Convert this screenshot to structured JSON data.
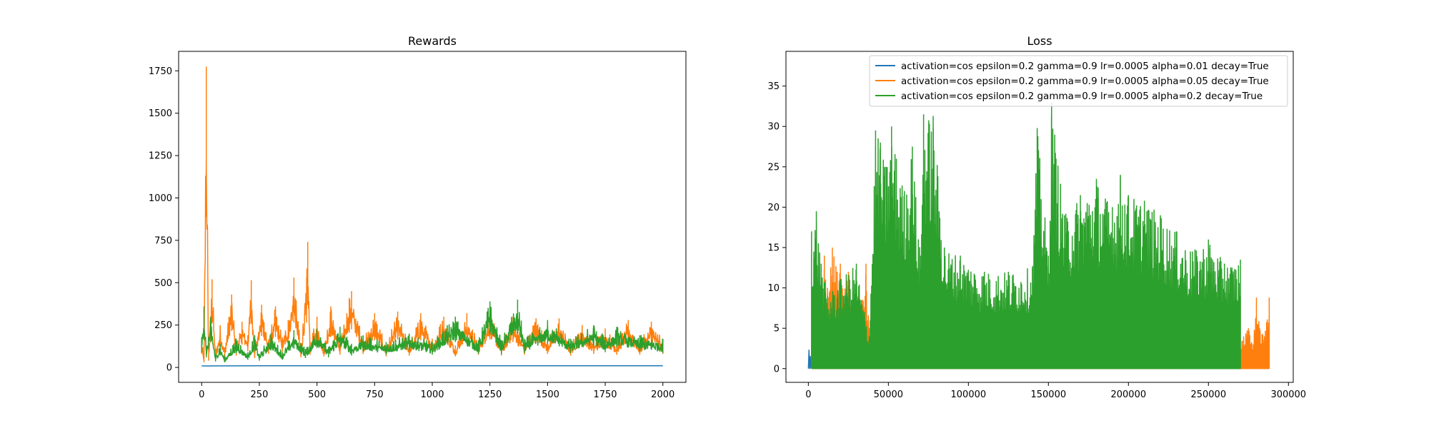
{
  "chart_data": [
    {
      "type": "line",
      "title": "Rewards",
      "xlabel": "",
      "ylabel": "",
      "xlim": [
        -100,
        2100
      ],
      "ylim": [
        -88,
        1865
      ],
      "xticks": [
        0,
        250,
        500,
        750,
        1000,
        1250,
        1500,
        1750,
        2000
      ],
      "xtick_labels": [
        "0",
        "250",
        "500",
        "750",
        "1000",
        "1250",
        "1500",
        "1750",
        "2000"
      ],
      "yticks": [
        0,
        250,
        500,
        750,
        1000,
        1250,
        1500,
        1750
      ],
      "ytick_labels": [
        "0",
        "250",
        "500",
        "750",
        "1000",
        "1250",
        "1500",
        "1750"
      ],
      "grid": false,
      "legend": null,
      "series": [
        {
          "color": "#1f77b4",
          "x": [
            0,
            250,
            500,
            750,
            1000,
            1250,
            1500,
            1750,
            2000
          ],
          "y": [
            9,
            10,
            10,
            10,
            10,
            10,
            10,
            10,
            10
          ]
        },
        {
          "color": "#ff7f0e",
          "x": [
            0,
            10,
            20,
            30,
            45,
            60,
            80,
            100,
            130,
            150,
            175,
            200,
            215,
            230,
            260,
            290,
            320,
            350,
            375,
            400,
            430,
            455,
            460,
            470,
            500,
            530,
            560,
            600,
            640,
            650,
            700,
            750,
            800,
            850,
            900,
            950,
            1000,
            1050,
            1100,
            1150,
            1200,
            1250,
            1300,
            1350,
            1400,
            1450,
            1500,
            1550,
            1600,
            1650,
            1700,
            1750,
            1800,
            1850,
            1900,
            1950,
            2000
          ],
          "y": [
            160,
            60,
            1775,
            80,
            520,
            90,
            250,
            120,
            430,
            140,
            270,
            190,
            515,
            110,
            370,
            160,
            360,
            180,
            280,
            530,
            120,
            530,
            740,
            150,
            300,
            130,
            360,
            150,
            410,
            450,
            160,
            320,
            130,
            330,
            140,
            320,
            170,
            300,
            130,
            320,
            150,
            330,
            140,
            300,
            150,
            290,
            160,
            290,
            140,
            250,
            160,
            230,
            150,
            280,
            150,
            270,
            160
          ]
        },
        {
          "color": "#2ca02c",
          "x": [
            0,
            10,
            20,
            40,
            60,
            80,
            100,
            150,
            200,
            230,
            250,
            300,
            350,
            400,
            450,
            500,
            550,
            600,
            650,
            700,
            800,
            900,
            1000,
            1100,
            1200,
            1250,
            1300,
            1370,
            1400,
            1500,
            1600,
            1700,
            1750,
            1800,
            1900,
            2000
          ],
          "y": [
            180,
            360,
            120,
            300,
            70,
            140,
            60,
            170,
            90,
            190,
            80,
            200,
            90,
            220,
            110,
            230,
            120,
            240,
            140,
            190,
            150,
            200,
            150,
            300,
            160,
            390,
            160,
            400,
            170,
            280,
            170,
            250,
            180,
            240,
            190,
            170
          ]
        }
      ]
    },
    {
      "type": "line",
      "title": "Loss",
      "xlabel": "",
      "ylabel": "",
      "xlim": [
        -14000,
        303000
      ],
      "ylim": [
        -1.7,
        39.3
      ],
      "xticks": [
        0,
        50000,
        100000,
        150000,
        200000,
        250000,
        300000
      ],
      "xtick_labels": [
        "0",
        "50000",
        "100000",
        "150000",
        "200000",
        "250000",
        "300000"
      ],
      "yticks": [
        0,
        5,
        10,
        15,
        20,
        25,
        30,
        35
      ],
      "ytick_labels": [
        "0",
        "5",
        "10",
        "15",
        "20",
        "25",
        "30",
        "35"
      ],
      "grid": false,
      "legend": "top-right",
      "series": [
        {
          "name": "activation=cos epsilon=0.2 gamma=0.9 lr=0.0005 alpha=0.01 decay=True",
          "color": "#1f77b4",
          "x": [
            0,
            400,
            800,
            1200,
            1600
          ],
          "y": [
            0,
            2.3,
            0,
            1.5,
            0
          ]
        },
        {
          "name": "activation=cos epsilon=0.2 gamma=0.9 lr=0.0005 alpha=0.05 decay=True",
          "color": "#ff7f0e",
          "x": [
            2000,
            5000,
            8000,
            10000,
            12000,
            15000,
            18000,
            20000,
            22000,
            25000,
            28000,
            30000,
            33000,
            36000,
            38000,
            272000,
            275000,
            278000,
            280000,
            282000,
            285000,
            288000
          ],
          "y": [
            3,
            13,
            11,
            14,
            10,
            15,
            12,
            13,
            9,
            12,
            8,
            11,
            8,
            13,
            5,
            4,
            5,
            3,
            8.8,
            5,
            4,
            8.8
          ]
        },
        {
          "name": "activation=cos epsilon=0.2 gamma=0.9 lr=0.0005 alpha=0.2 decay=True",
          "color": "#2ca02c",
          "x": [
            2000,
            5000,
            8000,
            12000,
            20000,
            30000,
            38000,
            42000,
            45000,
            48000,
            52000,
            55000,
            60000,
            65000,
            70000,
            72000,
            78000,
            85000,
            95000,
            110000,
            125000,
            140000,
            143000,
            150000,
            152000,
            160000,
            170000,
            180000,
            190000,
            195000,
            200000,
            210000,
            220000,
            230000,
            240000,
            250000,
            260000,
            270000
          ],
          "y": [
            17,
            19.5,
            13,
            9,
            11,
            13,
            4,
            29.5,
            28,
            25,
            30,
            26,
            22,
            27.5,
            14,
            31.5,
            31.3,
            15,
            14,
            12,
            12,
            12.5,
            29.8,
            14,
            33,
            19,
            21.5,
            23.5,
            20,
            24,
            21.5,
            20.8,
            19,
            17,
            14.5,
            16,
            13,
            13.5
          ]
        }
      ]
    }
  ]
}
